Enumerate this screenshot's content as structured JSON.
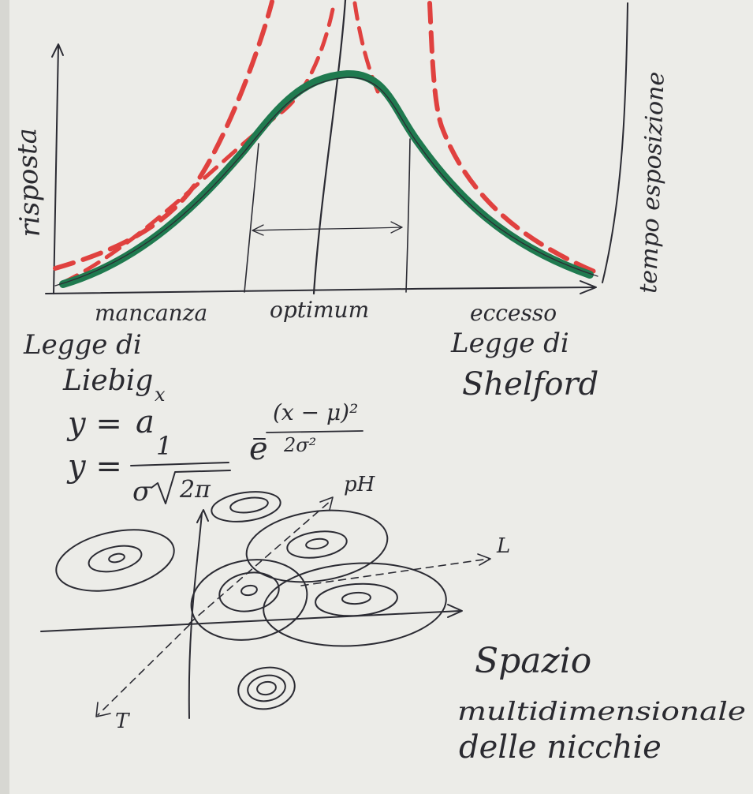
{
  "labels": {
    "y_axis": "risposta",
    "y_axis_right": "tempo esposizione",
    "x_left": "mancanza",
    "x_center": "optimum",
    "x_right": "eccesso",
    "law_left_line1": "Legge di",
    "law_left_line2": "Liebig",
    "law_right_line1": "Legge di",
    "law_right_line2": "Shelford"
  },
  "formulas": {
    "f1_lhs": "y =",
    "f1_base": "a",
    "f1_exp": "x",
    "f2_lhs": "y =",
    "f2_num": "1",
    "f2_den_sigma": "σ",
    "f2_den_root": "2π",
    "f2_e": "e",
    "f2_exp_num": "(x − μ)²",
    "f2_exp_den": "2σ²"
  },
  "niche": {
    "axis_ph": "pH",
    "axis_l": "L",
    "axis_t": "T",
    "caption_line1": "Spazio",
    "caption_line2": "multidimensionale",
    "caption_line3": "delle nicchie"
  },
  "colors": {
    "paper": "#ecece8",
    "ink": "#2b2b33",
    "green_curve": "#1f7a4f",
    "red_dashed": "#e0413f"
  }
}
